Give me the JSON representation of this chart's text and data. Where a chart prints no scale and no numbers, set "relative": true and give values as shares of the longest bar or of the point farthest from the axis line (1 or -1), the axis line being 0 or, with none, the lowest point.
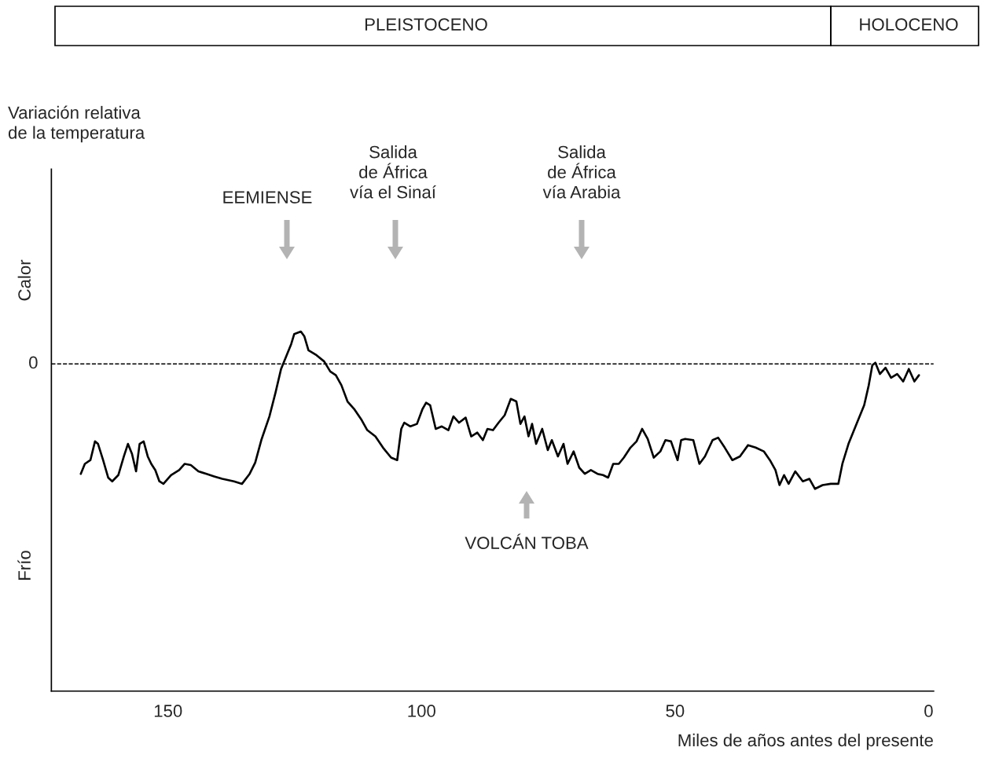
{
  "chart_data": {
    "type": "line",
    "relative": true,
    "xlabel": "Miles de años antes del presente",
    "xlim": [
      173,
      -1
    ],
    "xticks": [
      150,
      100,
      50,
      0
    ],
    "grid": false,
    "legend": false,
    "marker": "none",
    "line_style": "solid",
    "ref_lines": [
      {
        "axis": "y",
        "value": 0,
        "label": "0",
        "line_style": "dashed",
        "color": "#000000"
      }
    ],
    "annotations": [
      "EEMIENSE",
      "Salida\nde África\nvía el Sinaí",
      "Salida\nde África\nvía Arabia",
      "VOLCÁN TOBA",
      "Calor",
      "Frío",
      "Variación relativa\nde la temperatura",
      "PLEISTOCENO",
      "HOLOCENO"
    ],
    "series": [
      {
        "color": "#000000",
        "x": [
          167.2,
          166.4,
          165.3,
          164.4,
          163.8,
          162.8,
          161.8,
          161.0,
          159.8,
          158.7,
          157.9,
          157.1,
          156.3,
          155.6,
          154.8,
          154.0,
          153.3,
          152.5,
          151.7,
          150.9,
          149.4,
          147.8,
          146.7,
          145.5,
          144.0,
          142.4,
          140.9,
          139.3,
          137.0,
          135.4,
          133.9,
          132.8,
          131.6,
          130.0,
          128.8,
          127.7,
          126.6,
          125.7,
          125.1,
          123.8,
          123.1,
          122.3,
          120.7,
          119.2,
          118.0,
          116.9,
          115.8,
          114.6,
          113.3,
          111.8,
          110.7,
          109.1,
          107.6,
          106.0,
          104.8,
          104.0,
          103.4,
          102.2,
          100.9,
          99.8,
          99.1,
          98.3,
          97.2,
          96.0,
          94.7,
          93.7,
          92.6,
          91.3,
          90.2,
          89.0,
          87.9,
          87.0,
          85.9,
          84.8,
          83.6,
          82.4,
          81.3,
          80.5,
          79.7,
          78.9,
          78.2,
          77.4,
          76.2,
          75.1,
          74.3,
          73.1,
          72.0,
          71.2,
          70.0,
          68.9,
          67.8,
          66.6,
          65.3,
          64.2,
          63.2,
          62.2,
          61.1,
          60.1,
          58.8,
          57.6,
          56.5,
          55.4,
          54.2,
          52.9,
          51.9,
          50.8,
          49.5,
          48.8,
          48.0,
          46.4,
          45.2,
          44.1,
          42.6,
          41.5,
          40.2,
          38.7,
          37.2,
          35.6,
          34.1,
          32.5,
          31.3,
          30.2,
          29.4,
          28.5,
          27.6,
          26.3,
          24.8,
          23.5,
          22.4,
          20.9,
          19.3,
          17.8,
          17.0,
          15.8,
          14.2,
          12.7,
          11.8,
          11.1,
          10.5,
          9.6,
          8.5,
          7.4,
          6.2,
          5.0,
          3.9,
          2.8,
          1.9
        ],
        "values": [
          -0.88,
          -0.8,
          -0.77,
          -0.62,
          -0.64,
          -0.77,
          -0.91,
          -0.94,
          -0.89,
          -0.74,
          -0.64,
          -0.72,
          -0.86,
          -0.64,
          -0.62,
          -0.74,
          -0.8,
          -0.85,
          -0.94,
          -0.96,
          -0.89,
          -0.85,
          -0.8,
          -0.81,
          -0.86,
          -0.88,
          -0.9,
          -0.92,
          -0.94,
          -0.96,
          -0.88,
          -0.79,
          -0.61,
          -0.42,
          -0.23,
          -0.04,
          0.07,
          0.16,
          0.24,
          0.26,
          0.22,
          0.11,
          0.07,
          0.02,
          -0.06,
          -0.09,
          -0.17,
          -0.3,
          -0.36,
          -0.45,
          -0.53,
          -0.58,
          -0.67,
          -0.75,
          -0.77,
          -0.52,
          -0.47,
          -0.5,
          -0.48,
          -0.36,
          -0.31,
          -0.33,
          -0.52,
          -0.5,
          -0.53,
          -0.42,
          -0.47,
          -0.43,
          -0.58,
          -0.55,
          -0.61,
          -0.52,
          -0.53,
          -0.47,
          -0.41,
          -0.28,
          -0.3,
          -0.48,
          -0.42,
          -0.58,
          -0.48,
          -0.64,
          -0.52,
          -0.69,
          -0.61,
          -0.74,
          -0.64,
          -0.8,
          -0.7,
          -0.83,
          -0.88,
          -0.85,
          -0.88,
          -0.89,
          -0.91,
          -0.8,
          -0.8,
          -0.75,
          -0.67,
          -0.62,
          -0.52,
          -0.6,
          -0.75,
          -0.7,
          -0.61,
          -0.62,
          -0.77,
          -0.61,
          -0.6,
          -0.61,
          -0.8,
          -0.74,
          -0.61,
          -0.59,
          -0.67,
          -0.77,
          -0.74,
          -0.65,
          -0.67,
          -0.7,
          -0.77,
          -0.85,
          -0.97,
          -0.89,
          -0.96,
          -0.86,
          -0.94,
          -0.92,
          -1.0,
          -0.97,
          -0.96,
          -0.96,
          -0.8,
          -0.64,
          -0.48,
          -0.33,
          -0.17,
          -0.01,
          0.01,
          -0.08,
          -0.03,
          -0.11,
          -0.08,
          -0.14,
          -0.04,
          -0.14,
          -0.09
        ]
      }
    ]
  }
}
